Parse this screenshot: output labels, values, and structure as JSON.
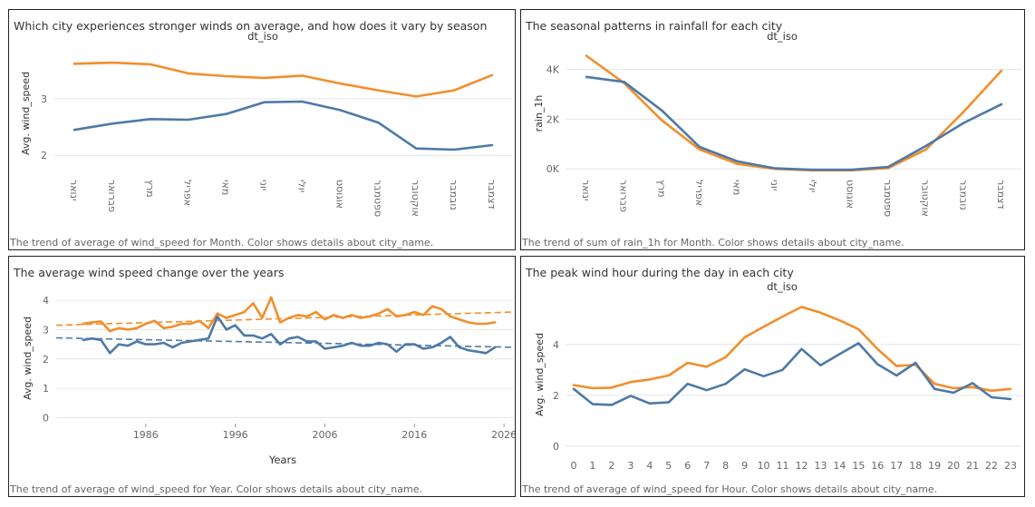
{
  "colors": {
    "orange": "#F28E2B",
    "blue": "#4E79A7",
    "axis_text": "#666666",
    "grid": "#E6E6E6"
  },
  "panels": [
    {
      "title": "Which city experiences stronger winds on average, and how does it vary by season",
      "caption": "The trend of average of wind_speed for Month. Color shows details about city_name."
    },
    {
      "title": "The seasonal patterns in rainfall for each city",
      "caption": "The trend of sum of rain_1h for Month. Color shows details about city_name."
    },
    {
      "title": "The average wind speed change over the years",
      "caption": "The trend of average of wind_speed for Year.  Color shows details about city_name."
    },
    {
      "title": "The peak wind hour during the day in each city",
      "caption": "The trend of average of wind_speed for Hour. Color shows details about city_name."
    }
  ],
  "chart_data": [
    {
      "type": "line",
      "header": "dt_iso",
      "ylabel": "Avg. wind_speed",
      "xlabel": "",
      "categories": [
        "ינואר",
        "פברואר",
        "מרץ",
        "אפריל",
        "מאי",
        "יוני",
        "יולי",
        "אוגוסט",
        "ספטמבר",
        "אוקטובר",
        "נובמבר",
        "דצמבר"
      ],
      "yticks": [
        "2",
        "3"
      ],
      "ylim": [
        1.65,
        3.85
      ],
      "grid": true,
      "series": [
        {
          "color": "orange",
          "values": [
            3.62,
            3.64,
            3.61,
            3.45,
            3.4,
            3.37,
            3.41,
            3.27,
            3.15,
            3.04,
            3.15,
            3.42
          ]
        },
        {
          "color": "blue",
          "values": [
            2.45,
            2.56,
            2.64,
            2.63,
            2.73,
            2.94,
            2.95,
            2.8,
            2.58,
            2.12,
            2.1,
            2.18
          ]
        }
      ]
    },
    {
      "type": "line",
      "header": "dt_iso",
      "ylabel": "rain_1h",
      "xlabel": "",
      "categories": [
        "ינואר",
        "פברואר",
        "מרץ",
        "אפריל",
        "מאי",
        "יוני",
        "יולי",
        "אוגוסט",
        "ספטמבר",
        "אוקטובר",
        "נובמבר",
        "דצמבר"
      ],
      "yticks": [
        "0K",
        "2K",
        "4K"
      ],
      "ylim": [
        -250,
        4750
      ],
      "grid": true,
      "series": [
        {
          "color": "orange",
          "values": [
            4550,
            3450,
            1950,
            780,
            200,
            0,
            -60,
            -60,
            30,
            780,
            2300,
            3950
          ]
        },
        {
          "color": "blue",
          "values": [
            3700,
            3500,
            2350,
            880,
            300,
            20,
            -40,
            -40,
            80,
            920,
            1850,
            2600
          ]
        }
      ]
    },
    {
      "type": "line",
      "header": "",
      "ylabel": "Avg. wind_speed",
      "xlabel": "Years",
      "xticks": [
        "1986",
        "1996",
        "2006",
        "2016",
        "2026"
      ],
      "xlim": [
        1976,
        2027
      ],
      "yticks": [
        "0",
        "1",
        "2",
        "3",
        "4"
      ],
      "ylim": [
        -0.2,
        4.25
      ],
      "grid": true,
      "trend": [
        {
          "color": "orange",
          "from": [
            1976,
            3.15
          ],
          "to": [
            2027,
            3.6
          ]
        },
        {
          "color": "blue",
          "from": [
            1976,
            2.72
          ],
          "to": [
            2027,
            2.4
          ]
        }
      ],
      "series": [
        {
          "color": "orange",
          "x": [
            1979,
            1980,
            1981,
            1982,
            1983,
            1984,
            1985,
            1986,
            1987,
            1988,
            1989,
            1990,
            1991,
            1992,
            1993,
            1994,
            1995,
            1996,
            1997,
            1998,
            1999,
            2000,
            2001,
            2002,
            2003,
            2004,
            2005,
            2006,
            2007,
            2008,
            2009,
            2010,
            2011,
            2012,
            2013,
            2014,
            2015,
            2016,
            2017,
            2018,
            2019,
            2020,
            2021,
            2022,
            2023,
            2024,
            2025
          ],
          "values": [
            3.2,
            3.25,
            3.28,
            2.95,
            3.05,
            3.0,
            3.05,
            3.2,
            3.3,
            3.05,
            3.1,
            3.2,
            3.2,
            3.3,
            3.05,
            3.55,
            3.4,
            3.5,
            3.6,
            3.9,
            3.4,
            4.1,
            3.25,
            3.4,
            3.5,
            3.45,
            3.6,
            3.35,
            3.5,
            3.4,
            3.5,
            3.4,
            3.45,
            3.55,
            3.7,
            3.45,
            3.5,
            3.6,
            3.5,
            3.8,
            3.7,
            3.45,
            3.35,
            3.25,
            3.2,
            3.2,
            3.25
          ]
        },
        {
          "color": "blue",
          "x": [
            1979,
            1980,
            1981,
            1982,
            1983,
            1984,
            1985,
            1986,
            1987,
            1988,
            1989,
            1990,
            1991,
            1992,
            1993,
            1994,
            1995,
            1996,
            1997,
            1998,
            1999,
            2000,
            2001,
            2002,
            2003,
            2004,
            2005,
            2006,
            2007,
            2008,
            2009,
            2010,
            2011,
            2012,
            2013,
            2014,
            2015,
            2016,
            2017,
            2018,
            2019,
            2020,
            2021,
            2022,
            2023,
            2024,
            2025
          ],
          "values": [
            2.65,
            2.7,
            2.65,
            2.2,
            2.5,
            2.45,
            2.6,
            2.5,
            2.5,
            2.55,
            2.4,
            2.55,
            2.6,
            2.65,
            2.7,
            3.45,
            3.0,
            3.15,
            2.8,
            2.8,
            2.7,
            2.85,
            2.5,
            2.7,
            2.75,
            2.6,
            2.6,
            2.35,
            2.4,
            2.45,
            2.55,
            2.45,
            2.45,
            2.55,
            2.5,
            2.25,
            2.5,
            2.5,
            2.35,
            2.4,
            2.55,
            2.75,
            2.4,
            2.3,
            2.25,
            2.2,
            2.4
          ]
        }
      ]
    },
    {
      "type": "line",
      "header": "dt_iso",
      "ylabel": "Avg. wind_speed",
      "xlabel": "",
      "categories": [
        "0",
        "1",
        "2",
        "3",
        "4",
        "5",
        "6",
        "7",
        "8",
        "9",
        "10",
        "11",
        "12",
        "13",
        "14",
        "15",
        "16",
        "17",
        "18",
        "19",
        "20",
        "21",
        "22",
        "23"
      ],
      "yticks": [
        "0",
        "2",
        "4"
      ],
      "ylim": [
        -0.15,
        5.85
      ],
      "grid": true,
      "series": [
        {
          "color": "orange",
          "values": [
            2.4,
            2.28,
            2.3,
            2.52,
            2.62,
            2.78,
            3.28,
            3.12,
            3.5,
            4.28,
            4.7,
            5.1,
            5.48,
            5.25,
            4.95,
            4.6,
            3.82,
            3.15,
            3.2,
            2.45,
            2.28,
            2.32,
            2.18,
            2.25
          ]
        },
        {
          "color": "blue",
          "values": [
            2.25,
            1.65,
            1.62,
            1.98,
            1.68,
            1.72,
            2.45,
            2.2,
            2.45,
            3.02,
            2.75,
            3.0,
            3.82,
            3.18,
            3.62,
            4.05,
            3.22,
            2.78,
            3.28,
            2.25,
            2.1,
            2.48,
            1.92,
            1.85
          ]
        }
      ]
    }
  ]
}
